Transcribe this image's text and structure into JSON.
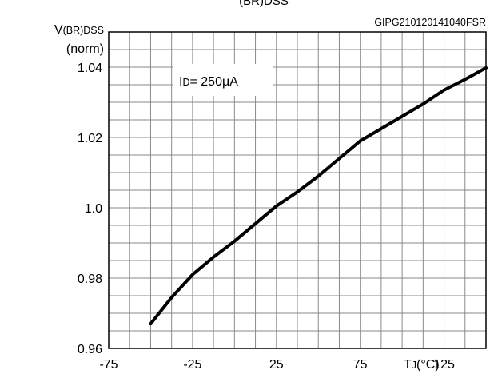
{
  "header": {
    "partial_title": "(BR)DSS",
    "figure_code": "GIPG210120141040FSR"
  },
  "chart_data": {
    "type": "line",
    "ylabel_main": "V",
    "ylabel_sub": "(BR)DSS",
    "ylabel_unit": "(norm)",
    "xlabel_main": "T",
    "xlabel_sub": "J",
    "xlabel_unit": "(°C)",
    "xlim": [
      -75,
      150
    ],
    "ylim": [
      0.96,
      1.05
    ],
    "x_ticks": [
      "-75",
      "-25",
      "25",
      "75",
      "125"
    ],
    "x_tick_values": [
      -75,
      -25,
      25,
      75,
      125
    ],
    "y_ticks": [
      "0.96",
      "0.98",
      "1.0",
      "1.02",
      "1.04"
    ],
    "y_tick_values": [
      0.96,
      0.98,
      1.0,
      1.02,
      1.04
    ],
    "grid": true,
    "annotation": {
      "main": "I",
      "sub": "D",
      "text": "= 250μA"
    },
    "series": [
      {
        "x": [
          -50,
          -37.5,
          -25,
          -12.5,
          0,
          12.5,
          25,
          37.5,
          50,
          62.5,
          75,
          87.5,
          100,
          112.5,
          125,
          137.5,
          150
        ],
        "y": [
          0.967,
          0.9745,
          0.981,
          0.986,
          0.9905,
          0.9955,
          1.0005,
          1.0045,
          1.009,
          1.014,
          1.019,
          1.0225,
          1.026,
          1.0295,
          1.0335,
          1.0365,
          1.0398
        ]
      }
    ]
  }
}
